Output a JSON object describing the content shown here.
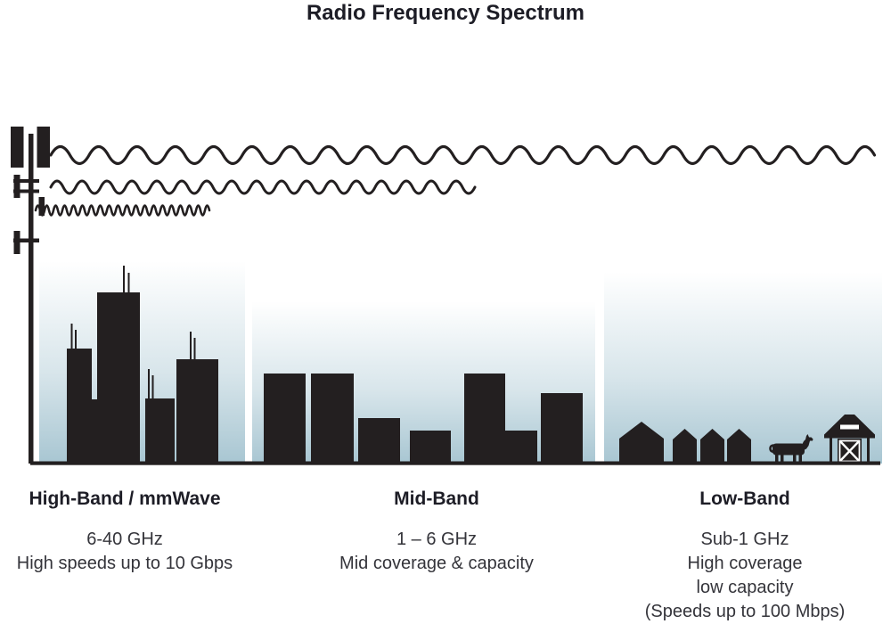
{
  "title": "Radio Frequency Spectrum",
  "colors": {
    "ink": "#231f20",
    "sky": "#a8c6d2",
    "heading_text": "#1d1d26",
    "body_text": "#34343a",
    "background": "#ffffff"
  },
  "illustration": {
    "tower_icon": "cell-tower-icon",
    "ground_icon": "ground-line",
    "waves": [
      {
        "icon": "long-wavelength-wave-icon",
        "reaches_band": "low"
      },
      {
        "icon": "medium-wavelength-wave-icon",
        "reaches_band": "mid"
      },
      {
        "icon": "short-wavelength-wave-icon",
        "reaches_band": "high"
      }
    ]
  },
  "bands": [
    {
      "id": "high",
      "heading": "High-Band / mmWave",
      "lines": [
        "6-40 GHz",
        "High speeds up to 10 Gbps"
      ],
      "scene_icon": "city-skyline-icon"
    },
    {
      "id": "mid",
      "heading": "Mid-Band",
      "lines": [
        "1 – 6 GHz",
        "Mid coverage & capacity"
      ],
      "scene_icon": "town-buildings-icon"
    },
    {
      "id": "low",
      "heading": "Low-Band",
      "lines": [
        "Sub-1 GHz",
        "High coverage",
        "low capacity",
        "(Speeds up to 100 Mbps)"
      ],
      "scene_icon": "farm-barn-icon"
    }
  ]
}
